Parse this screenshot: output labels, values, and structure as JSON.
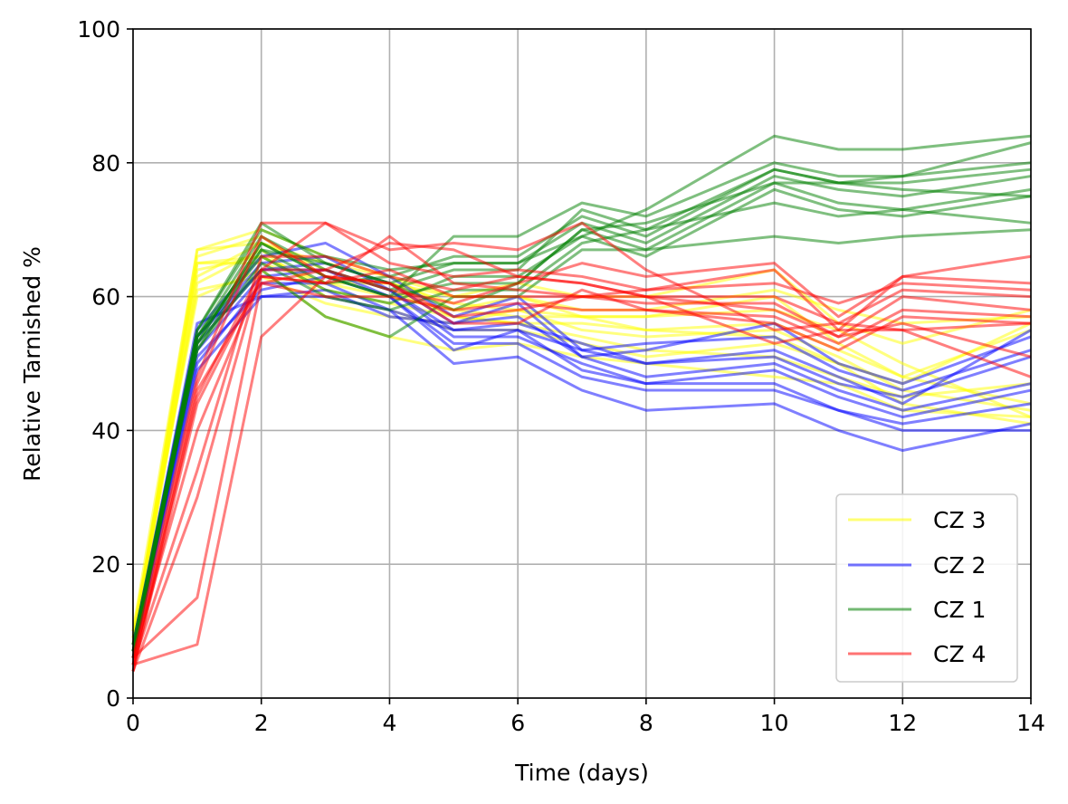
{
  "chart_data": {
    "type": "line",
    "xlabel": "Time (days)",
    "ylabel": "Relative Tarnished %",
    "xlim": [
      0,
      14
    ],
    "ylim": [
      0,
      100
    ],
    "xticks": [
      0,
      2,
      4,
      6,
      8,
      10,
      12,
      14
    ],
    "yticks": [
      0,
      20,
      40,
      60,
      80,
      100
    ],
    "grid": true,
    "legend_position": "lower-right",
    "x": [
      0,
      1,
      2,
      3,
      4,
      5,
      6,
      7,
      8,
      10,
      11,
      12,
      14
    ],
    "groups": [
      {
        "name": "CZ 3",
        "color": "#ffff00",
        "lines": [
          [
            8,
            67,
            68,
            65,
            63,
            60,
            60,
            57,
            57,
            58,
            55,
            50,
            42
          ],
          [
            9,
            65,
            65,
            62,
            60,
            58,
            57,
            57,
            55,
            56,
            52,
            48,
            44
          ],
          [
            7,
            62,
            67,
            60,
            58,
            55,
            55,
            53,
            51,
            53,
            50,
            44,
            41
          ],
          [
            10,
            60,
            64,
            57,
            54,
            52,
            53,
            51,
            50,
            48,
            47,
            43,
            42
          ],
          [
            8,
            66,
            69,
            63,
            62,
            59,
            58,
            55,
            54,
            55,
            51,
            46,
            43
          ],
          [
            7,
            64,
            66,
            61,
            59,
            57,
            56,
            54,
            52,
            51,
            48,
            45,
            47
          ],
          [
            9,
            61,
            63,
            59,
            57,
            56,
            58,
            57,
            57,
            60,
            53,
            48,
            55
          ],
          [
            8,
            63,
            68,
            64,
            61,
            57,
            56,
            56,
            55,
            54,
            50,
            47,
            56
          ],
          [
            10,
            67,
            70,
            66,
            63,
            58,
            60,
            58,
            58,
            61,
            58,
            56,
            57
          ],
          [
            8,
            65,
            66,
            62,
            62,
            60,
            62,
            60,
            60,
            64,
            56,
            53,
            58
          ]
        ]
      },
      {
        "name": "CZ 2",
        "color": "#0000ff",
        "lines": [
          [
            7,
            56,
            60,
            60,
            58,
            50,
            51,
            46,
            43,
            44,
            40,
            37,
            41
          ],
          [
            6,
            52,
            63,
            64,
            60,
            53,
            53,
            48,
            46,
            46,
            43,
            40,
            40
          ],
          [
            8,
            54,
            65,
            66,
            61,
            54,
            54,
            50,
            47,
            47,
            43,
            41,
            44
          ],
          [
            7,
            50,
            62,
            62,
            58,
            55,
            55,
            49,
            47,
            49,
            45,
            42,
            46
          ],
          [
            6,
            53,
            64,
            65,
            62,
            56,
            59,
            51,
            48,
            50,
            46,
            43,
            47
          ],
          [
            7,
            51,
            61,
            63,
            60,
            52,
            55,
            52,
            50,
            51,
            47,
            45,
            51
          ],
          [
            8,
            55,
            66,
            68,
            63,
            57,
            60,
            52,
            53,
            54,
            49,
            46,
            52
          ],
          [
            6,
            49,
            60,
            61,
            57,
            56,
            57,
            51,
            52,
            56,
            50,
            47,
            54
          ],
          [
            7,
            54,
            64,
            64,
            61,
            55,
            56,
            53,
            50,
            52,
            48,
            44,
            55
          ]
        ]
      },
      {
        "name": "CZ 1",
        "color": "#008000",
        "lines": [
          [
            7,
            55,
            71,
            65,
            62,
            65,
            65,
            69,
            73,
            84,
            82,
            82,
            84
          ],
          [
            6,
            53,
            68,
            63,
            60,
            69,
            69,
            74,
            72,
            80,
            78,
            78,
            83
          ],
          [
            8,
            54,
            69,
            64,
            61,
            64,
            64,
            73,
            70,
            79,
            77,
            78,
            80
          ],
          [
            7,
            52,
            67,
            62,
            63,
            66,
            66,
            72,
            69,
            79,
            77,
            77,
            79
          ],
          [
            6,
            55,
            70,
            66,
            64,
            65,
            65,
            71,
            68,
            78,
            76,
            75,
            78
          ],
          [
            7,
            53,
            68,
            63,
            60,
            62,
            62,
            70,
            67,
            77,
            74,
            73,
            76
          ],
          [
            8,
            54,
            66,
            61,
            59,
            63,
            63,
            69,
            66,
            76,
            73,
            72,
            75
          ],
          [
            7,
            52,
            65,
            60,
            58,
            61,
            61,
            68,
            70,
            74,
            72,
            73,
            71
          ],
          [
            6,
            53,
            64,
            57,
            54,
            60,
            60,
            67,
            67,
            69,
            68,
            69,
            70
          ],
          [
            7,
            54,
            67,
            65,
            62,
            58,
            62,
            70,
            71,
            77,
            77,
            76,
            75
          ]
        ]
      },
      {
        "name": "CZ 4",
        "color": "#ff0000",
        "lines": [
          [
            5,
            8,
            54,
            63,
            62,
            57,
            58,
            60,
            61,
            64,
            55,
            63,
            66
          ],
          [
            6,
            15,
            62,
            64,
            61,
            59,
            62,
            65,
            63,
            65,
            57,
            63,
            62
          ],
          [
            4,
            30,
            64,
            71,
            65,
            63,
            64,
            63,
            61,
            62,
            59,
            62,
            61
          ],
          [
            5,
            34,
            66,
            66,
            63,
            61,
            63,
            62,
            60,
            60,
            56,
            61,
            60
          ],
          [
            6,
            40,
            63,
            62,
            64,
            60,
            60,
            60,
            59,
            59,
            54,
            60,
            58
          ],
          [
            4,
            46,
            62,
            60,
            60,
            58,
            59,
            58,
            58,
            57,
            53,
            58,
            57
          ],
          [
            5,
            47,
            69,
            63,
            62,
            56,
            56,
            61,
            58,
            56,
            52,
            57,
            56
          ],
          [
            6,
            48,
            71,
            71,
            67,
            68,
            67,
            71,
            64,
            55,
            56,
            55,
            56
          ],
          [
            5,
            45,
            64,
            64,
            68,
            67,
            63,
            62,
            60,
            58,
            54,
            56,
            51
          ],
          [
            4,
            44,
            63,
            62,
            69,
            62,
            61,
            60,
            60,
            53,
            55,
            55,
            48
          ]
        ]
      }
    ]
  }
}
